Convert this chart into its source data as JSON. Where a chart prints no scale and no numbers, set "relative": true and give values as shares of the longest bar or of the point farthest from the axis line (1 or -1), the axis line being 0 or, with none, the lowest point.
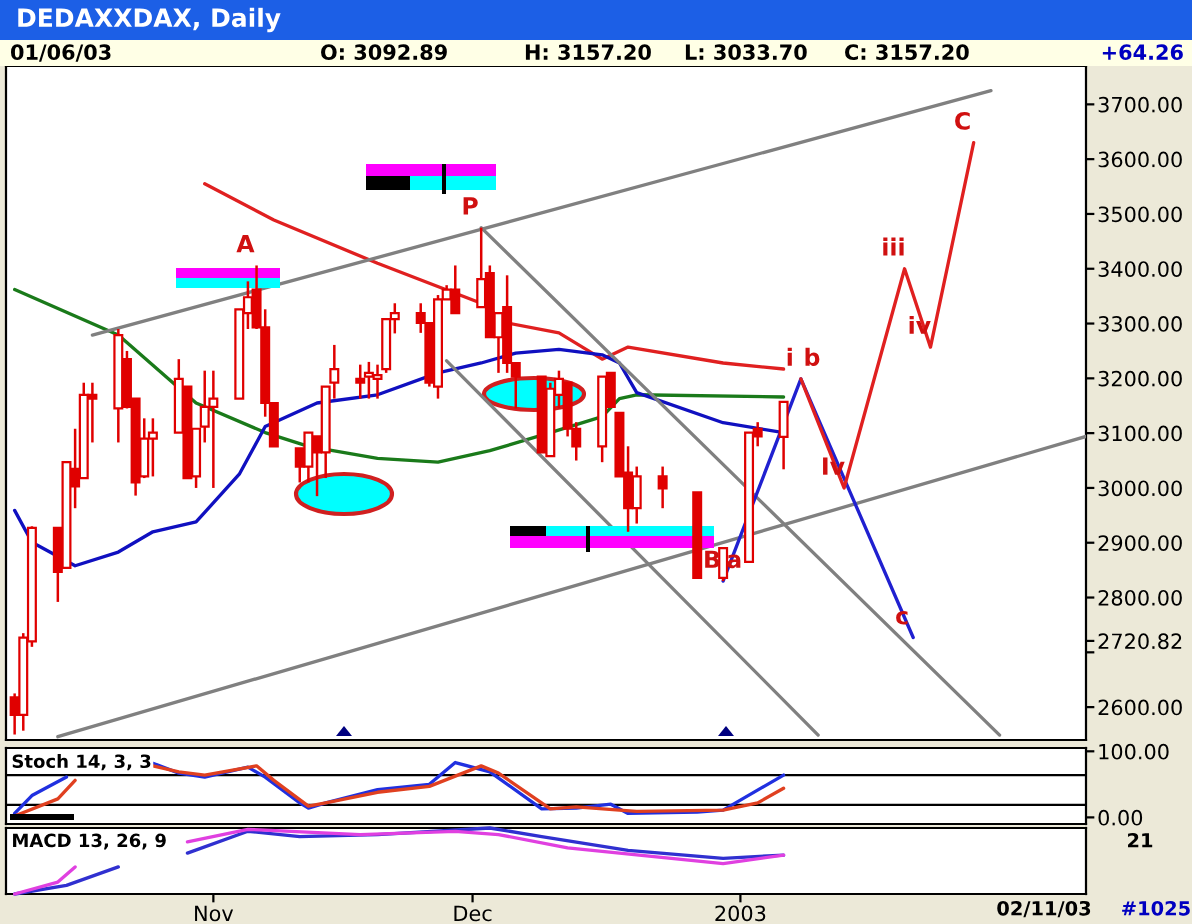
{
  "chart_data": [
    {
      "type": "candlestick",
      "title": "DEDAXXDAX, Daily",
      "color": "#e00000",
      "x": [
        "2002-10-09",
        "2002-10-10",
        "2002-10-11",
        "2002-10-14",
        "2002-10-15",
        "2002-10-16",
        "2002-10-17",
        "2002-10-18",
        "2002-10-21",
        "2002-10-22",
        "2002-10-23",
        "2002-10-24",
        "2002-10-25",
        "2002-10-28",
        "2002-10-29",
        "2002-10-30",
        "2002-10-31",
        "2002-11-01",
        "2002-11-04",
        "2002-11-05",
        "2002-11-06",
        "2002-11-07",
        "2002-11-08",
        "2002-11-11",
        "2002-11-12",
        "2002-11-13",
        "2002-11-14",
        "2002-11-15",
        "2002-11-18",
        "2002-11-19",
        "2002-11-20",
        "2002-11-21",
        "2002-11-22",
        "2002-11-25",
        "2002-11-26",
        "2002-11-27",
        "2002-11-28",
        "2002-11-29",
        "2002-12-02",
        "2002-12-03",
        "2002-12-04",
        "2002-12-05",
        "2002-12-06",
        "2002-12-09",
        "2002-12-10",
        "2002-12-11",
        "2002-12-12",
        "2002-12-13",
        "2002-12-16",
        "2002-12-17",
        "2002-12-18",
        "2002-12-19",
        "2002-12-20",
        "2002-12-23",
        "2002-12-27",
        "2002-12-30",
        "2003-01-02",
        "2003-01-03",
        "2003-01-06"
      ],
      "ohlc": [
        [
          2618,
          2625,
          2550,
          2586
        ],
        [
          2586,
          2735,
          2557,
          2727
        ],
        [
          2720,
          2930,
          2710,
          2927
        ],
        [
          2927,
          2927,
          2792,
          2847
        ],
        [
          2854,
          3047,
          2854,
          3047
        ],
        [
          3035,
          3108,
          2963,
          3003
        ],
        [
          3018,
          3192,
          3018,
          3170
        ],
        [
          3170,
          3192,
          3083,
          3163
        ],
        [
          3145,
          3290,
          3083,
          3279
        ],
        [
          3235,
          3250,
          3145,
          3148
        ],
        [
          3163,
          3163,
          2986,
          3010
        ],
        [
          3021,
          3127,
          3018,
          3090
        ],
        [
          3090,
          3127,
          3021,
          3101
        ],
        [
          3101,
          3235,
          3101,
          3199
        ],
        [
          3185,
          3185,
          3018,
          3018
        ],
        [
          3021,
          3108,
          3000,
          3108
        ],
        [
          3112,
          3214,
          3083,
          3148
        ],
        [
          3148,
          3214,
          3000,
          3163
        ],
        [
          3163,
          3326,
          3163,
          3326
        ],
        [
          3319,
          3377,
          3290,
          3348
        ],
        [
          3362,
          3406,
          3290,
          3293
        ],
        [
          3293,
          3326,
          3130,
          3155
        ],
        [
          3155,
          3155,
          3076,
          3076
        ],
        [
          3072,
          3072,
          3010,
          3039
        ],
        [
          3039,
          3101,
          3010,
          3101
        ],
        [
          3094,
          3094,
          2985,
          3065
        ],
        [
          3065,
          3185,
          3018,
          3185
        ],
        [
          3192,
          3261,
          3163,
          3217
        ],
        [
          3199,
          3225,
          3163,
          3192
        ],
        [
          3203,
          3230,
          3163,
          3210
        ],
        [
          3199,
          3225,
          3163,
          3206
        ],
        [
          3217,
          3308,
          3210,
          3308
        ],
        [
          3308,
          3337,
          3282,
          3319
        ],
        [
          3319,
          3337,
          3283,
          3301
        ],
        [
          3301,
          3301,
          3185,
          3192
        ],
        [
          3185,
          3352,
          3163,
          3344
        ],
        [
          3344,
          3370,
          3344,
          3362
        ],
        [
          3362,
          3406,
          3319,
          3319
        ],
        [
          3330,
          3475,
          3330,
          3381
        ],
        [
          3392,
          3406,
          3275,
          3275
        ],
        [
          3275,
          3319,
          3210,
          3319
        ],
        [
          3330,
          3388,
          3210,
          3228
        ],
        [
          3228,
          3228,
          3145,
          3203
        ],
        [
          3203,
          3203,
          3065,
          3065
        ],
        [
          3058,
          3192,
          3058,
          3181
        ],
        [
          3170,
          3214,
          3145,
          3199
        ],
        [
          3192,
          3192,
          3094,
          3108
        ],
        [
          3108,
          3120,
          3050,
          3076
        ],
        [
          3076,
          3203,
          3047,
          3203
        ],
        [
          3210,
          3210,
          3148,
          3148
        ],
        [
          3137,
          3137,
          3021,
          3021
        ],
        [
          3028,
          3076,
          2920,
          2963
        ],
        [
          2963,
          3039,
          2935,
          3021
        ],
        [
          3021,
          3039,
          2963,
          2999
        ],
        [
          2992,
          2992,
          2836,
          2836
        ],
        [
          2836,
          2890,
          2830,
          2890
        ],
        [
          2865,
          3101,
          2865,
          3101
        ],
        [
          3108,
          3120,
          3076,
          3094
        ],
        [
          3093,
          3157,
          3034,
          3157
        ]
      ],
      "series": [
        {
          "type": "line",
          "color": "#e02020",
          "x": [
            "2002-10-31",
            "2002-11-08",
            "2002-11-20",
            "2002-12-02",
            "2002-12-05",
            "2002-12-11",
            "2002-12-16",
            "2002-12-19",
            "2002-12-30",
            "2003-01-06"
          ],
          "values": [
            3555,
            3489,
            3410,
            3337,
            3301,
            3283,
            3235,
            3257,
            3228,
            3217
          ]
        },
        {
          "type": "line",
          "color": "#1a7a1a",
          "x": [
            "2002-10-09",
            "2002-10-21",
            "2002-10-30",
            "2002-11-07",
            "2002-11-12",
            "2002-11-20",
            "2002-11-27",
            "2002-12-03",
            "2002-12-10",
            "2002-12-16",
            "2002-12-18",
            "2002-12-20",
            "2003-01-06"
          ],
          "values": [
            3362,
            3279,
            3155,
            3101,
            3076,
            3054,
            3047,
            3068,
            3101,
            3130,
            3163,
            3170,
            3166
          ]
        },
        {
          "type": "line",
          "color": "#1010c0",
          "x": [
            "2002-10-09",
            "2002-10-11",
            "2002-10-16",
            "2002-10-21",
            "2002-10-25",
            "2002-10-30",
            "2002-11-04",
            "2002-11-07",
            "2002-11-13",
            "2002-11-20",
            "2002-11-27",
            "2002-12-02",
            "2002-12-06",
            "2002-12-11",
            "2002-12-16",
            "2002-12-18",
            "2002-12-20",
            "2002-12-30",
            "2003-01-06"
          ],
          "values": [
            2959,
            2901,
            2858,
            2883,
            2920,
            2938,
            3025,
            3112,
            3155,
            3170,
            3210,
            3228,
            3246,
            3253,
            3243,
            3228,
            3174,
            3119,
            3101
          ]
        },
        {
          "type": "line",
          "color": "#808080",
          "x": [
            "2002-10-18",
            "2003-01-30"
          ],
          "values": [
            3279,
            3725
          ]
        },
        {
          "type": "line",
          "color": "#808080",
          "x": [
            "2002-10-14",
            "2003-02-10"
          ],
          "values": [
            2546,
            3094
          ]
        },
        {
          "type": "line",
          "color": "#808080",
          "x": [
            "2002-12-02",
            "2003-01-31"
          ],
          "values": [
            3475,
            2549
          ]
        },
        {
          "type": "line",
          "color": "#808080",
          "x": [
            "2002-11-28",
            "2003-01-10"
          ],
          "values": [
            3232,
            2549
          ]
        },
        {
          "type": "line",
          "color": "#2020d0",
          "x": [
            "2002-12-30",
            "2003-01-08",
            "2003-01-21"
          ],
          "values": [
            2830,
            3199,
            2727
          ]
        },
        {
          "type": "line",
          "color": "#e02020",
          "x": [
            "2003-01-08",
            "2003-01-13",
            "2003-01-20",
            "2003-01-23",
            "2003-01-28"
          ],
          "values": [
            3199,
            3000,
            3400,
            3257,
            3630
          ]
        }
      ],
      "xlim": [
        "2002-10-08",
        "2003-02-10"
      ],
      "ylim": [
        2540,
        3770
      ],
      "yticks": [
        {
          "value": 2600,
          "label": "2600.00"
        },
        {
          "value": 2700,
          "label": null
        },
        {
          "value": 2720.82,
          "label": "2720.82"
        },
        {
          "value": 2800,
          "label": "2800.00"
        },
        {
          "value": 2900,
          "label": "2900.00"
        },
        {
          "value": 3000,
          "label": "3000.00"
        },
        {
          "value": 3100,
          "label": "3100.00"
        },
        {
          "value": 3200,
          "label": "3200.00"
        },
        {
          "value": 3300,
          "label": "3300.00"
        },
        {
          "value": 3400,
          "label": "3400.00"
        },
        {
          "value": 3500,
          "label": "3500.00"
        },
        {
          "value": 3600,
          "label": "3600.00"
        },
        {
          "value": 3700,
          "label": "3700.00"
        }
      ],
      "tick_labels": "y",
      "annotations": [
        "01/06/03",
        "O: 3092.89",
        "H: 3157.20",
        "L: 3033.70",
        "C: 3157.20",
        "+64.26",
        {
          "text": "A",
          "x": "2002-11-06",
          "y": 3406
        },
        {
          "text": "P",
          "x": "2002-12-02",
          "y": 3475
        },
        {
          "text": "B",
          "x": "2002-12-30",
          "y": 2830
        },
        {
          "text": "a",
          "x": "2002-12-30",
          "y": 2830
        },
        {
          "text": "i",
          "x": "2003-01-08",
          "y": 3199
        },
        {
          "text": "b",
          "x": "2003-01-08",
          "y": 3199
        },
        {
          "text": "Iv",
          "x": "2003-01-13",
          "y": 3000
        },
        {
          "text": "iii",
          "x": "2003-01-20",
          "y": 3400
        },
        {
          "text": "iv",
          "x": "2003-01-23",
          "y": 3257
        },
        {
          "text": "c",
          "x": "2003-01-21",
          "y": 2727
        },
        {
          "text": "C",
          "x": "2003-01-28",
          "y": 3630
        }
      ]
    },
    {
      "type": "line",
      "title": "Stoch 14, 3, 3",
      "series": [
        {
          "color": "#2030e0",
          "x": [
            "2002-10-09",
            "2002-10-11",
            "2002-10-15",
            "2002-10-18",
            "2002-10-25",
            "2002-10-28",
            "2002-10-31",
            "2002-11-05",
            "2002-11-07",
            "2002-11-11",
            "2002-11-12",
            "2002-11-14",
            "2002-11-20",
            "2002-11-26",
            "2002-11-29",
            "2002-12-03",
            "2002-12-09",
            "2002-12-13",
            "2002-12-17",
            "2002-12-19",
            "2002-12-27",
            "2002-12-30",
            "2003-01-06"
          ],
          "values": [
            6,
            33,
            61,
            null,
            82,
            67,
            61,
            76,
            61,
            22,
            14,
            22,
            42,
            50,
            83,
            69,
            13,
            14,
            20,
            6,
            8,
            11,
            64
          ]
        },
        {
          "color": "#e04020",
          "x": [
            "2002-10-09",
            "2002-10-14",
            "2002-10-16",
            "2002-10-18",
            "2002-10-25",
            "2002-10-28",
            "2002-10-31",
            "2002-11-06",
            "2002-11-08",
            "2002-11-12",
            "2002-11-14",
            "2002-11-20",
            "2002-11-26",
            "2002-12-02",
            "2002-12-04",
            "2002-12-10",
            "2002-12-13",
            "2002-12-18",
            "2002-12-20",
            "2002-12-30",
            "2003-01-03",
            "2003-01-06"
          ],
          "values": [
            2,
            28,
            56,
            null,
            78,
            69,
            64,
            78,
            56,
            17,
            22,
            38,
            47,
            78,
            67,
            13,
            16,
            11,
            9,
            11,
            22,
            44
          ]
        }
      ],
      "xlim": [
        "2002-10-08",
        "2003-02-10"
      ],
      "ylim": [
        -10,
        105
      ],
      "yticks": [
        {
          "value": 0,
          "label": "0.00"
        },
        {
          "value": 100,
          "label": "100.00"
        }
      ],
      "ref_lines": [
        {
          "axis": "y",
          "value": 64,
          "color": "#000000"
        },
        {
          "axis": "y",
          "value": 19,
          "color": "#000000"
        }
      ],
      "tick_labels": "y"
    },
    {
      "type": "line",
      "title": "MACD 13, 26, 9",
      "relative": true,
      "series": [
        {
          "color": "#3030d0",
          "x": [
            "2002-10-09",
            "2002-10-15",
            "2002-10-21",
            "2002-10-22",
            "2002-10-29",
            "2002-11-05",
            "2002-11-11",
            "2002-11-20",
            "2002-12-03",
            "2002-12-09",
            "2002-12-19",
            "2002-12-30",
            "2003-01-06"
          ],
          "values": [
            0,
            0.13,
            0.41,
            null,
            0.62,
            0.95,
            0.87,
            0.9,
            1,
            0.87,
            0.66,
            0.54,
            0.59
          ]
        },
        {
          "color": "#e040e0",
          "x": [
            "2002-10-09",
            "2002-10-14",
            "2002-10-16",
            "2002-10-22",
            "2002-10-29",
            "2002-11-05",
            "2002-11-18",
            "2002-11-29",
            "2002-12-04",
            "2002-12-12",
            "2002-12-30",
            "2003-01-06"
          ],
          "values": [
            0,
            0.18,
            0.41,
            null,
            0.79,
            0.98,
            0.9,
            0.95,
            0.9,
            0.7,
            0.46,
            0.59
          ]
        }
      ],
      "xlim": [
        "2002-10-08",
        "2003-02-10"
      ],
      "xticks": [
        {
          "value": "2002-11-01",
          "label": "Nov"
        },
        {
          "value": "2002-12-01",
          "label": "Dec"
        },
        {
          "value": "2003-01-01",
          "label": "2003"
        }
      ],
      "tick_labels": "x",
      "annotations": [
        "21",
        "02/11/03",
        "#1025"
      ]
    }
  ]
}
